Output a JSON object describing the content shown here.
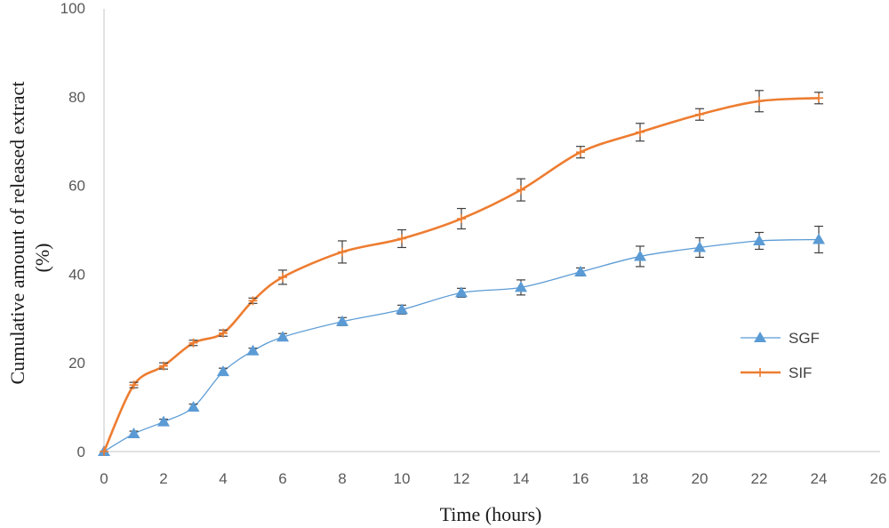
{
  "chart_data": {
    "type": "line",
    "xlabel": "Time (hours)",
    "ylabel": "Cumulative amount of  released extract (%)",
    "ylabel_lines": [
      "Cumulative amount of  released extract",
      "(%)"
    ],
    "xlim": [
      0,
      26
    ],
    "ylim": [
      0,
      100
    ],
    "xticks": [
      0,
      2,
      4,
      6,
      8,
      10,
      12,
      14,
      16,
      18,
      20,
      22,
      24,
      26
    ],
    "yticks": [
      0,
      20,
      40,
      60,
      80,
      100
    ],
    "grid": false,
    "legend_position": "right",
    "x": [
      0,
      1,
      2,
      3,
      4,
      5,
      6,
      8,
      10,
      12,
      14,
      16,
      18,
      20,
      22,
      24
    ],
    "series": [
      {
        "name": "SGF",
        "color": "#5b9bd5",
        "marker": "triangle",
        "values": [
          0,
          4,
          6.7,
          10,
          18,
          22.7,
          25.8,
          29.3,
          32,
          35.8,
          37,
          40.5,
          44,
          46,
          47.5,
          47.8
        ],
        "errors": [
          0,
          0.6,
          0.6,
          0.7,
          0.8,
          0.6,
          0.8,
          0.9,
          1.0,
          1.0,
          1.7,
          0.9,
          2.3,
          2.2,
          1.9,
          3.0
        ]
      },
      {
        "name": "SIF",
        "color": "#ed7d31",
        "marker": "plus",
        "values": [
          0,
          15,
          19.3,
          24.5,
          26.7,
          34,
          39.3,
          45,
          48,
          52.5,
          59,
          67.5,
          72,
          76,
          79,
          79.7
        ],
        "errors": [
          0,
          0.6,
          0.7,
          0.6,
          0.7,
          0.6,
          1.6,
          2.5,
          2.0,
          2.3,
          2.5,
          1.3,
          2.0,
          1.3,
          2.4,
          1.3
        ]
      }
    ]
  }
}
